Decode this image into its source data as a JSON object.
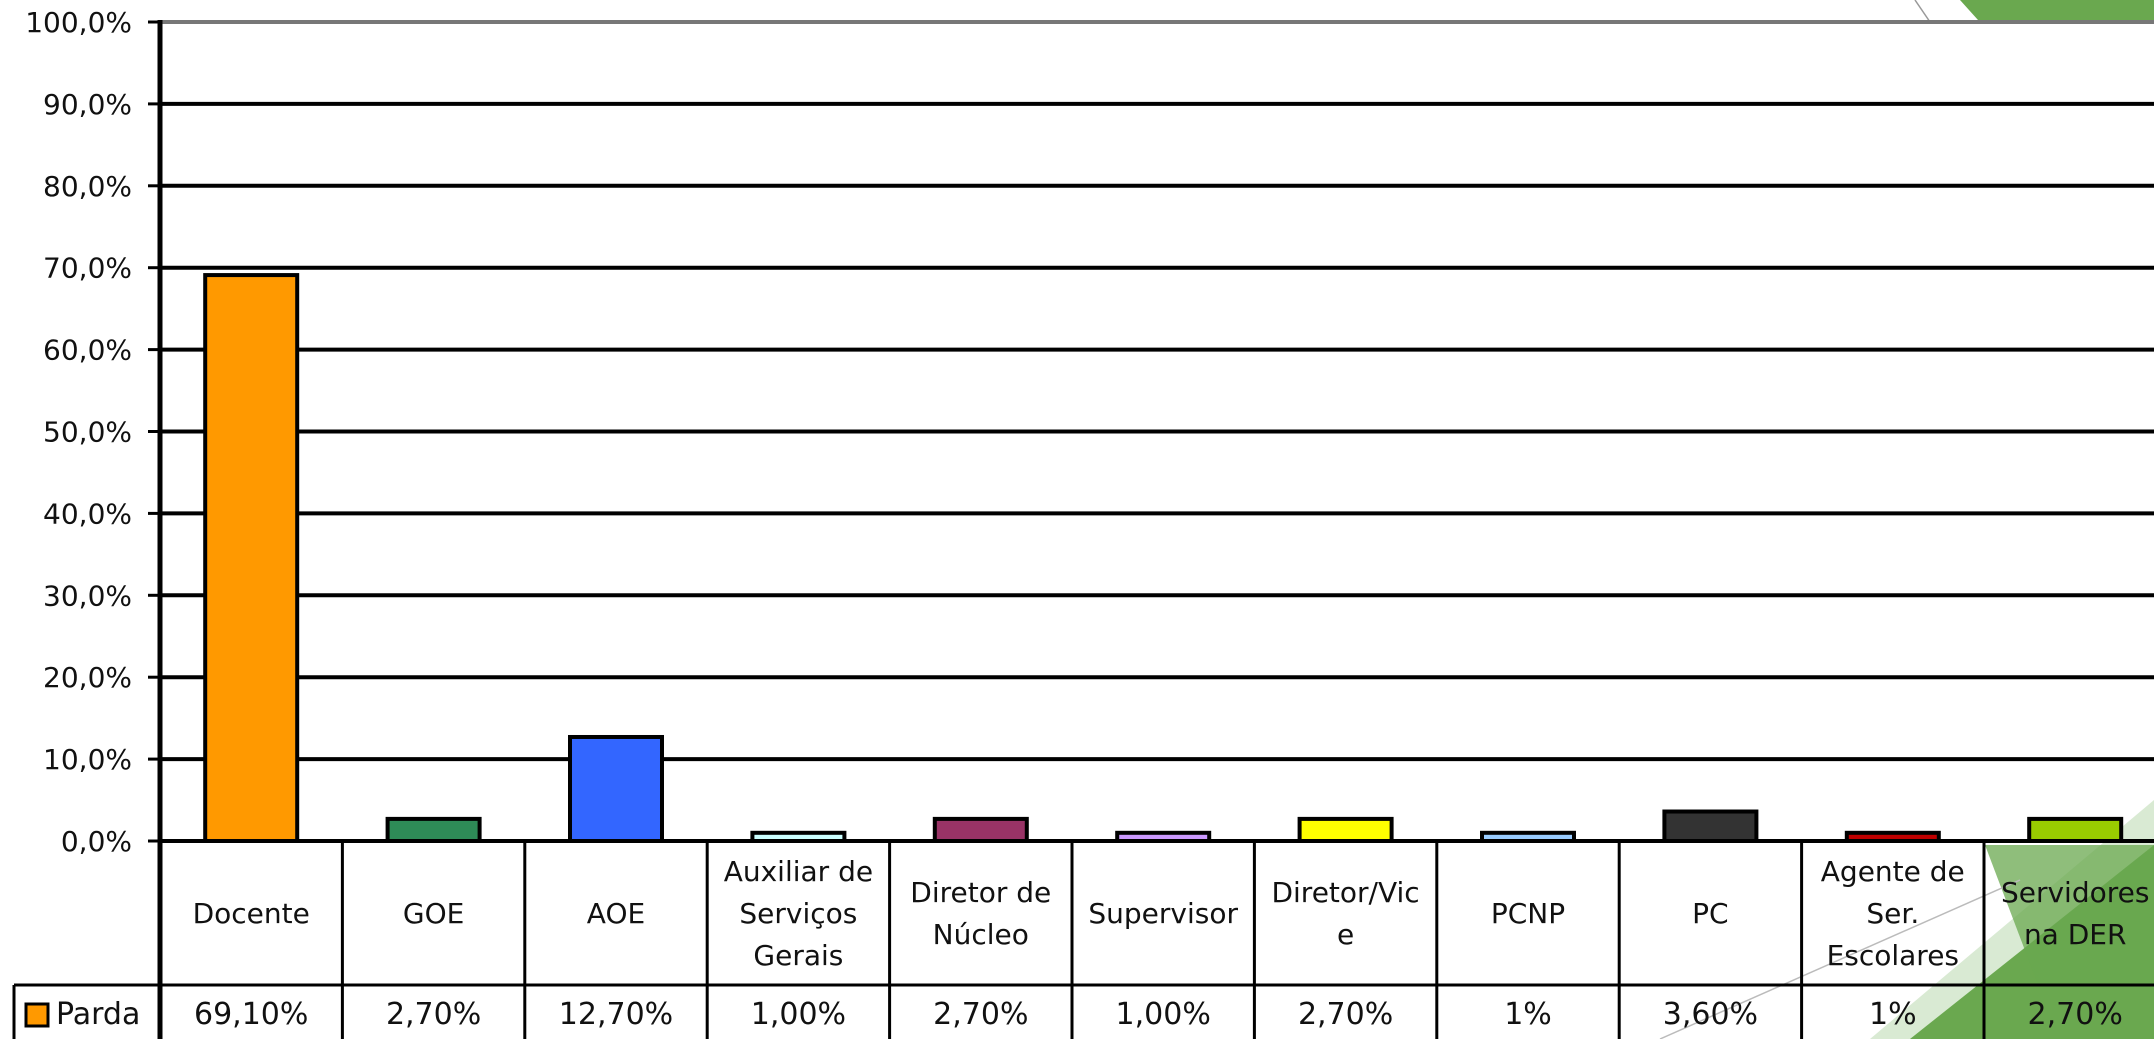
{
  "chart_data": {
    "type": "bar",
    "categories": [
      [
        "Docente"
      ],
      [
        "GOE"
      ],
      [
        "AOE"
      ],
      [
        "Auxiliar de",
        "Serviços",
        "Gerais"
      ],
      [
        "Diretor de",
        "Núcleo"
      ],
      [
        "Supervisor"
      ],
      [
        "Diretor/Vic",
        "e"
      ],
      [
        "PCNP"
      ],
      [
        "PC"
      ],
      [
        "Agente de",
        "Ser.",
        "Escolares"
      ],
      [
        "Servidores",
        "na DER"
      ]
    ],
    "series": [
      {
        "name": "Parda",
        "values": [
          69.1,
          2.7,
          12.7,
          1.0,
          2.7,
          1.0,
          2.7,
          1.0,
          3.6,
          1.0,
          2.7
        ],
        "labels": [
          "69,10%",
          "2,70%",
          "12,70%",
          "1,00%",
          "2,70%",
          "1,00%",
          "2,70%",
          "1%",
          "3,60%",
          "1%",
          "2,70%"
        ]
      }
    ],
    "bar_colors": [
      "#FF9900",
      "#2E8B57",
      "#3366FF",
      "#CCFFFF",
      "#993366",
      "#CC99FF",
      "#FFFF00",
      "#99CCFF",
      "#333333",
      "#C00000",
      "#99CC00"
    ],
    "legend_color": "#FF9900",
    "ylim": [
      0,
      100
    ],
    "yticks": [
      "0,0%",
      "10,0%",
      "20,0%",
      "30,0%",
      "40,0%",
      "50,0%",
      "60,0%",
      "70,0%",
      "80,0%",
      "90,0%",
      "100,0%"
    ],
    "grid": true,
    "legend": "data-table-row",
    "title": "",
    "xlabel": "",
    "ylabel": ""
  },
  "background": {
    "accent_dark": "#6AA84F",
    "accent_light": "#D9EAD3"
  }
}
